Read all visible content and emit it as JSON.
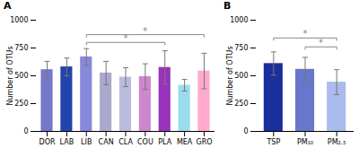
{
  "chart_data": [
    {
      "type": "bar",
      "title": "A",
      "ylabel": "Number of OTUs",
      "categories": [
        "DOR",
        "LAB",
        "LIB",
        "CAN",
        "CLA",
        "COU",
        "PLA",
        "MEA",
        "GRO"
      ],
      "values": [
        555,
        580,
        670,
        525,
        488,
        493,
        575,
        415,
        543
      ],
      "errors": [
        75,
        80,
        75,
        105,
        85,
        115,
        150,
        52,
        160
      ],
      "colors": [
        "#7777cc",
        "#2244aa",
        "#8888dd",
        "#aaaacc",
        "#bbbbdd",
        "#cc88cc",
        "#9933bb",
        "#99ddee",
        "#ffaacc"
      ],
      "ylim": [
        0,
        1000
      ],
      "yticks": [
        0,
        250,
        500,
        750,
        1000
      ],
      "grid": false,
      "annotations": [
        {
          "text": "*",
          "x1": "LIB",
          "x2": "PLA",
          "y": 800
        },
        {
          "text": "*",
          "x1": "LIB",
          "x2": "GRO",
          "y": 870
        }
      ]
    },
    {
      "type": "bar",
      "title": "B",
      "ylabel": "Number of OTUs",
      "categories": [
        "TSP",
        "PM₁₀",
        "PM₂.₅"
      ],
      "values": [
        610,
        558,
        443
      ],
      "errors": [
        105,
        108,
        112
      ],
      "colors": [
        "#1a2f9e",
        "#6677cc",
        "#aabbee"
      ],
      "ylim": [
        0,
        1000
      ],
      "yticks": [
        0,
        250,
        500,
        750,
        1000
      ],
      "grid": false,
      "annotations": [
        {
          "text": "*",
          "x1": "TSP",
          "x2": "PM₂.₅",
          "y": 840
        },
        {
          "text": "*",
          "x1": "PM₁₀",
          "x2": "PM₂.₅",
          "y": 760
        }
      ]
    }
  ]
}
